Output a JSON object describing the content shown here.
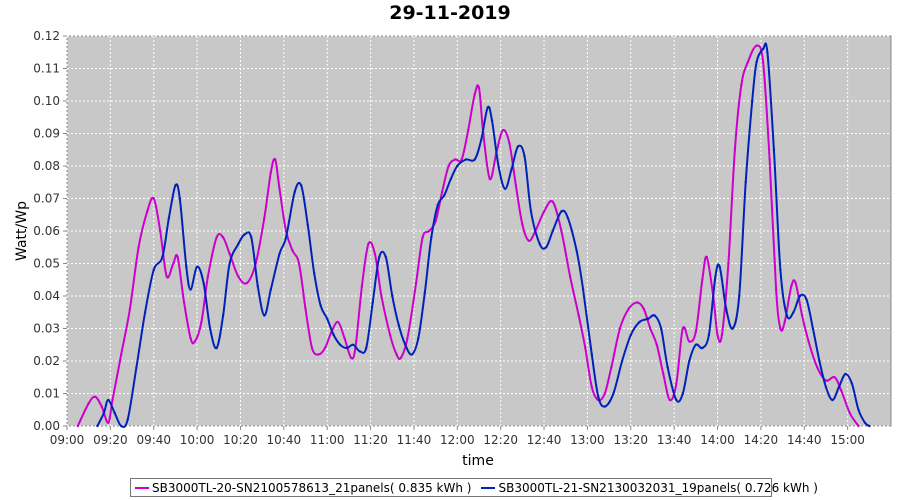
{
  "chart_data": {
    "type": "line",
    "title": "29-11-2019",
    "xlabel": "time",
    "ylabel": "Watt/Wp",
    "xlim": [
      "09:00",
      "15:20"
    ],
    "ylim": [
      0,
      0.12
    ],
    "x_ticks": [
      "09:00",
      "09:20",
      "09:40",
      "10:00",
      "10:20",
      "10:40",
      "11:00",
      "11:20",
      "11:40",
      "12:00",
      "12:20",
      "12:40",
      "13:00",
      "13:20",
      "13:40",
      "14:00",
      "14:20",
      "14:40",
      "15:00"
    ],
    "y_ticks": [
      "0.00",
      "0.01",
      "0.02",
      "0.03",
      "0.04",
      "0.05",
      "0.06",
      "0.07",
      "0.08",
      "0.09",
      "0.10",
      "0.11",
      "0.12"
    ],
    "grid": true,
    "background": "#c8c8c8",
    "legend_position": "bottom",
    "series": [
      {
        "name": "SB3000TL-20-SN2100578613_21panels( 0.835 kWh )",
        "color": "#cc00cc",
        "points": [
          [
            "09:05",
            0.0
          ],
          [
            "09:10",
            0.007
          ],
          [
            "09:13",
            0.009
          ],
          [
            "09:16",
            0.006
          ],
          [
            "09:19",
            0.001
          ],
          [
            "09:21",
            0.008
          ],
          [
            "09:25",
            0.022
          ],
          [
            "09:29",
            0.036
          ],
          [
            "09:33",
            0.055
          ],
          [
            "09:37",
            0.066
          ],
          [
            "09:40",
            0.07
          ],
          [
            "09:43",
            0.06
          ],
          [
            "09:46",
            0.046
          ],
          [
            "09:49",
            0.05
          ],
          [
            "09:51",
            0.052
          ],
          [
            "09:54",
            0.038
          ],
          [
            "09:57",
            0.027
          ],
          [
            "09:59",
            0.026
          ],
          [
            "10:02",
            0.032
          ],
          [
            "10:05",
            0.046
          ],
          [
            "10:09",
            0.058
          ],
          [
            "10:12",
            0.058
          ],
          [
            "10:15",
            0.053
          ],
          [
            "10:19",
            0.046
          ],
          [
            "10:23",
            0.044
          ],
          [
            "10:27",
            0.05
          ],
          [
            "10:31",
            0.064
          ],
          [
            "10:34",
            0.078
          ],
          [
            "10:36",
            0.082
          ],
          [
            "10:38",
            0.073
          ],
          [
            "10:41",
            0.06
          ],
          [
            "10:44",
            0.054
          ],
          [
            "10:47",
            0.05
          ],
          [
            "10:50",
            0.036
          ],
          [
            "10:53",
            0.024
          ],
          [
            "10:56",
            0.022
          ],
          [
            "10:59",
            0.024
          ],
          [
            "11:02",
            0.029
          ],
          [
            "11:05",
            0.032
          ],
          [
            "11:08",
            0.027
          ],
          [
            "11:11",
            0.021
          ],
          [
            "11:13",
            0.024
          ],
          [
            "11:16",
            0.043
          ],
          [
            "11:19",
            0.056
          ],
          [
            "11:22",
            0.053
          ],
          [
            "11:25",
            0.04
          ],
          [
            "11:29",
            0.028
          ],
          [
            "11:32",
            0.022
          ],
          [
            "11:34",
            0.021
          ],
          [
            "11:37",
            0.027
          ],
          [
            "11:41",
            0.044
          ],
          [
            "11:44",
            0.058
          ],
          [
            "11:47",
            0.06
          ],
          [
            "11:50",
            0.063
          ],
          [
            "11:53",
            0.072
          ],
          [
            "11:56",
            0.08
          ],
          [
            "11:59",
            0.082
          ],
          [
            "12:02",
            0.082
          ],
          [
            "12:05",
            0.091
          ],
          [
            "12:08",
            0.102
          ],
          [
            "12:10",
            0.104
          ],
          [
            "12:12",
            0.09
          ],
          [
            "12:15",
            0.076
          ],
          [
            "12:18",
            0.084
          ],
          [
            "12:21",
            0.091
          ],
          [
            "12:24",
            0.087
          ],
          [
            "12:27",
            0.074
          ],
          [
            "12:30",
            0.062
          ],
          [
            "12:33",
            0.057
          ],
          [
            "12:36",
            0.06
          ],
          [
            "12:40",
            0.066
          ],
          [
            "12:44",
            0.069
          ],
          [
            "12:48",
            0.06
          ],
          [
            "12:52",
            0.046
          ],
          [
            "12:56",
            0.034
          ],
          [
            "12:59",
            0.024
          ],
          [
            "13:02",
            0.012
          ],
          [
            "13:05",
            0.008
          ],
          [
            "13:08",
            0.01
          ],
          [
            "13:11",
            0.018
          ],
          [
            "13:15",
            0.03
          ],
          [
            "13:19",
            0.036
          ],
          [
            "13:23",
            0.038
          ],
          [
            "13:26",
            0.036
          ],
          [
            "13:29",
            0.03
          ],
          [
            "13:32",
            0.025
          ],
          [
            "13:35",
            0.016
          ],
          [
            "13:38",
            0.008
          ],
          [
            "13:41",
            0.013
          ],
          [
            "13:44",
            0.03
          ],
          [
            "13:47",
            0.026
          ],
          [
            "13:50",
            0.029
          ],
          [
            "13:53",
            0.045
          ],
          [
            "13:55",
            0.052
          ],
          [
            "13:58",
            0.04
          ],
          [
            "14:00",
            0.028
          ],
          [
            "14:02",
            0.028
          ],
          [
            "14:05",
            0.05
          ],
          [
            "14:08",
            0.085
          ],
          [
            "14:11",
            0.105
          ],
          [
            "14:14",
            0.112
          ],
          [
            "14:18",
            0.117
          ],
          [
            "14:21",
            0.112
          ],
          [
            "14:24",
            0.082
          ],
          [
            "14:27",
            0.042
          ],
          [
            "14:29",
            0.03
          ],
          [
            "14:31",
            0.032
          ],
          [
            "14:34",
            0.043
          ],
          [
            "14:36",
            0.044
          ],
          [
            "14:39",
            0.034
          ],
          [
            "14:42",
            0.026
          ],
          [
            "14:46",
            0.018
          ],
          [
            "14:50",
            0.014
          ],
          [
            "14:54",
            0.015
          ],
          [
            "14:57",
            0.011
          ],
          [
            "15:01",
            0.004
          ],
          [
            "15:05",
            0.0
          ]
        ]
      },
      {
        "name": "SB3000TL-21-SN2130032031_19panels( 0.726 kWh )",
        "color": "#0022bb",
        "points": [
          [
            "09:14",
            0.0
          ],
          [
            "09:17",
            0.004
          ],
          [
            "09:19",
            0.008
          ],
          [
            "09:22",
            0.004
          ],
          [
            "09:25",
            0.0
          ],
          [
            "09:28",
            0.002
          ],
          [
            "09:32",
            0.018
          ],
          [
            "09:36",
            0.035
          ],
          [
            "09:40",
            0.048
          ],
          [
            "09:44",
            0.052
          ],
          [
            "09:47",
            0.064
          ],
          [
            "09:50",
            0.074
          ],
          [
            "09:52",
            0.07
          ],
          [
            "09:55",
            0.049
          ],
          [
            "09:57",
            0.042
          ],
          [
            "10:00",
            0.049
          ],
          [
            "10:03",
            0.044
          ],
          [
            "10:06",
            0.03
          ],
          [
            "10:09",
            0.024
          ],
          [
            "10:12",
            0.034
          ],
          [
            "10:15",
            0.05
          ],
          [
            "10:19",
            0.056
          ],
          [
            "10:22",
            0.059
          ],
          [
            "10:25",
            0.058
          ],
          [
            "10:28",
            0.043
          ],
          [
            "10:31",
            0.034
          ],
          [
            "10:34",
            0.042
          ],
          [
            "10:38",
            0.053
          ],
          [
            "10:41",
            0.058
          ],
          [
            "10:45",
            0.072
          ],
          [
            "10:48",
            0.074
          ],
          [
            "10:51",
            0.062
          ],
          [
            "10:54",
            0.047
          ],
          [
            "10:57",
            0.037
          ],
          [
            "11:00",
            0.033
          ],
          [
            "11:03",
            0.028
          ],
          [
            "11:06",
            0.025
          ],
          [
            "11:09",
            0.024
          ],
          [
            "11:12",
            0.025
          ],
          [
            "11:15",
            0.023
          ],
          [
            "11:18",
            0.024
          ],
          [
            "11:21",
            0.038
          ],
          [
            "11:24",
            0.052
          ],
          [
            "11:27",
            0.052
          ],
          [
            "11:30",
            0.04
          ],
          [
            "11:33",
            0.031
          ],
          [
            "11:36",
            0.025
          ],
          [
            "11:39",
            0.022
          ],
          [
            "11:42",
            0.027
          ],
          [
            "11:45",
            0.041
          ],
          [
            "11:48",
            0.058
          ],
          [
            "11:51",
            0.068
          ],
          [
            "11:54",
            0.071
          ],
          [
            "11:57",
            0.076
          ],
          [
            "12:00",
            0.08
          ],
          [
            "12:04",
            0.082
          ],
          [
            "12:08",
            0.082
          ],
          [
            "12:11",
            0.088
          ],
          [
            "12:14",
            0.098
          ],
          [
            "12:16",
            0.094
          ],
          [
            "12:19",
            0.08
          ],
          [
            "12:22",
            0.073
          ],
          [
            "12:25",
            0.079
          ],
          [
            "12:28",
            0.086
          ],
          [
            "12:31",
            0.083
          ],
          [
            "12:34",
            0.066
          ],
          [
            "12:38",
            0.056
          ],
          [
            "12:41",
            0.055
          ],
          [
            "12:44",
            0.06
          ],
          [
            "12:48",
            0.066
          ],
          [
            "12:51",
            0.064
          ],
          [
            "12:55",
            0.054
          ],
          [
            "12:58",
            0.042
          ],
          [
            "13:02",
            0.022
          ],
          [
            "13:05",
            0.009
          ],
          [
            "13:08",
            0.006
          ],
          [
            "13:12",
            0.01
          ],
          [
            "13:16",
            0.02
          ],
          [
            "13:20",
            0.028
          ],
          [
            "13:24",
            0.032
          ],
          [
            "13:28",
            0.033
          ],
          [
            "13:31",
            0.034
          ],
          [
            "13:34",
            0.03
          ],
          [
            "13:37",
            0.018
          ],
          [
            "13:41",
            0.008
          ],
          [
            "13:44",
            0.01
          ],
          [
            "13:47",
            0.02
          ],
          [
            "13:50",
            0.025
          ],
          [
            "13:53",
            0.024
          ],
          [
            "13:56",
            0.028
          ],
          [
            "13:59",
            0.046
          ],
          [
            "14:01",
            0.049
          ],
          [
            "14:04",
            0.036
          ],
          [
            "14:07",
            0.03
          ],
          [
            "14:10",
            0.04
          ],
          [
            "14:13",
            0.075
          ],
          [
            "14:16",
            0.1
          ],
          [
            "14:18",
            0.112
          ],
          [
            "14:21",
            0.116
          ],
          [
            "14:23",
            0.115
          ],
          [
            "14:26",
            0.085
          ],
          [
            "14:29",
            0.048
          ],
          [
            "14:32",
            0.034
          ],
          [
            "14:35",
            0.035
          ],
          [
            "14:38",
            0.04
          ],
          [
            "14:41",
            0.039
          ],
          [
            "14:44",
            0.03
          ],
          [
            "14:47",
            0.02
          ],
          [
            "14:50",
            0.012
          ],
          [
            "14:53",
            0.008
          ],
          [
            "14:56",
            0.012
          ],
          [
            "14:59",
            0.016
          ],
          [
            "15:02",
            0.013
          ],
          [
            "15:05",
            0.005
          ],
          [
            "15:08",
            0.001
          ],
          [
            "15:10",
            0.0
          ]
        ]
      }
    ]
  }
}
